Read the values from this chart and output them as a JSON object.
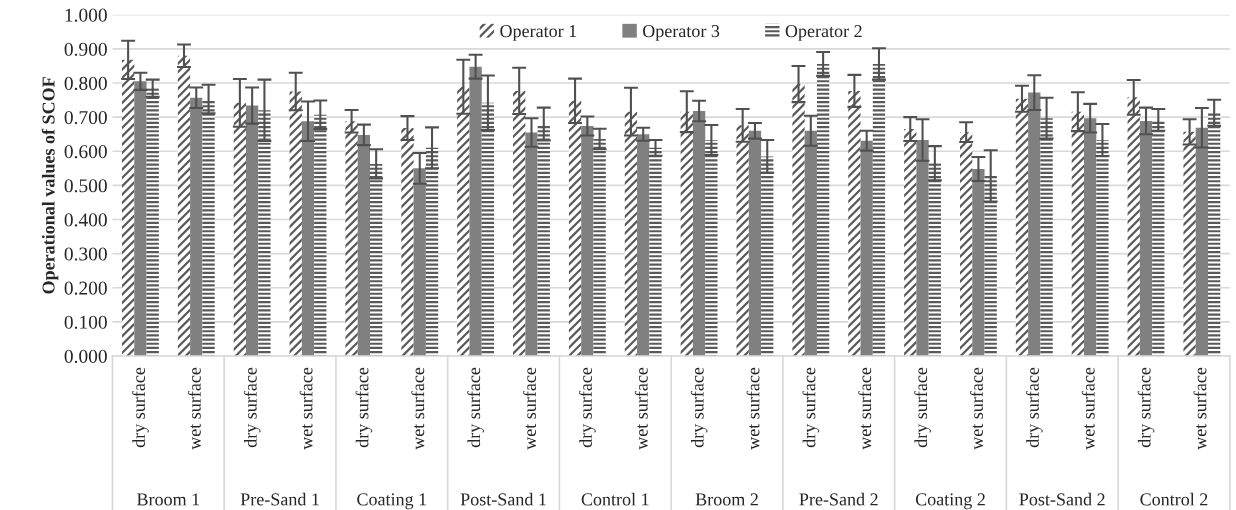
{
  "chart_data": {
    "type": "bar",
    "ylabel": "Operational values of SCOF",
    "categories": [
      "dry surface",
      "wet surface",
      "dry surface",
      "wet surface",
      "dry surface",
      "wet surface",
      "dry surface",
      "wet surface",
      "dry surface",
      "wet surface",
      "dry surface",
      "wet surface",
      "dry surface",
      "wet surface",
      "dry surface",
      "wet surface",
      "dry surface",
      "wet surface",
      "dry surface",
      "wet surface"
    ],
    "annotations": [
      "Broom 1",
      "Pre-Sand 1",
      "Coating 1",
      "Post-Sand 1",
      "Control 1",
      "Broom 2",
      "Pre-Sand 2",
      "Coating 2",
      "Post-Sand 2",
      "Control 2"
    ],
    "series": [
      {
        "name": "Operator 1",
        "color": "#595959",
        "values": [
          0.868,
          0.88,
          0.742,
          0.775,
          0.688,
          0.668,
          0.789,
          0.777,
          0.748,
          0.716,
          0.716,
          0.676,
          0.797,
          0.777,
          0.665,
          0.656,
          0.754,
          0.716,
          0.758,
          0.657
        ],
        "errors": [
          0.056,
          0.033,
          0.07,
          0.055,
          0.033,
          0.035,
          0.079,
          0.068,
          0.065,
          0.07,
          0.06,
          0.048,
          0.053,
          0.047,
          0.035,
          0.029,
          0.038,
          0.057,
          0.051,
          0.037
        ]
      },
      {
        "name": "Operator 3",
        "color": "#808080",
        "values": [
          0.805,
          0.757,
          0.734,
          0.688,
          0.648,
          0.55,
          0.848,
          0.655,
          0.674,
          0.65,
          0.718,
          0.66,
          0.66,
          0.631,
          0.633,
          0.548,
          0.772,
          0.697,
          0.689,
          0.669
        ],
        "errors": [
          0.025,
          0.03,
          0.053,
          0.058,
          0.03,
          0.045,
          0.035,
          0.042,
          0.028,
          0.019,
          0.03,
          0.023,
          0.044,
          0.029,
          0.061,
          0.035,
          0.051,
          0.042,
          0.039,
          0.058
        ]
      },
      {
        "name": "Operator 2",
        "color": "#595959",
        "values": [
          0.785,
          0.753,
          0.72,
          0.707,
          0.563,
          0.61,
          0.742,
          0.68,
          0.636,
          0.61,
          0.633,
          0.585,
          0.856,
          0.856,
          0.565,
          0.528,
          0.697,
          0.633,
          0.692,
          0.713
        ],
        "errors": [
          0.025,
          0.042,
          0.09,
          0.042,
          0.043,
          0.06,
          0.08,
          0.048,
          0.03,
          0.023,
          0.044,
          0.048,
          0.035,
          0.046,
          0.05,
          0.075,
          0.06,
          0.047,
          0.032,
          0.038
        ]
      }
    ],
    "ylim": [
      0,
      1
    ],
    "yticks": [
      {
        "value": 0,
        "label": "0.000"
      },
      {
        "value": 0.1,
        "label": "0.100"
      },
      {
        "value": 0.2,
        "label": "0.200"
      },
      {
        "value": 0.3,
        "label": "0.300"
      },
      {
        "value": 0.4,
        "label": "0.400"
      },
      {
        "value": 0.5,
        "label": "0.500"
      },
      {
        "value": 0.6,
        "label": "0.600"
      },
      {
        "value": 0.7,
        "label": "0.700"
      },
      {
        "value": 0.8,
        "label": "0.800"
      },
      {
        "value": 0.9,
        "label": "0.900"
      },
      {
        "value": 1,
        "label": "1.000"
      }
    ],
    "grid": "y",
    "legend": "top"
  }
}
